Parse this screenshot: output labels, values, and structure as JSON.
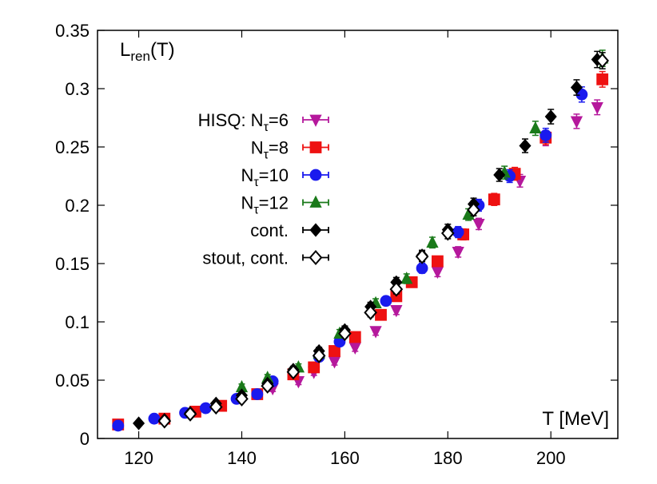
{
  "chart_data": {
    "type": "scatter",
    "title": "",
    "ylabel": "L",
    "ylabel_sub": "ren",
    "ylabel_suffix": "(T)",
    "xlabel": "T [MeV]",
    "xlim": [
      112,
      213
    ],
    "ylim": [
      0,
      0.35
    ],
    "x_ticks": [
      120,
      140,
      160,
      180,
      200
    ],
    "x_tick_labels": [
      "120",
      "140",
      "160",
      "180",
      "200"
    ],
    "y_ticks": [
      0,
      0.05,
      0.1,
      0.15,
      0.2,
      0.25,
      0.3,
      0.35
    ],
    "y_tick_labels": [
      "0",
      "0.05",
      "0.1",
      "0.15",
      "0.2",
      "0.25",
      "0.3",
      "0.35"
    ],
    "grid": false,
    "legend_position": "upper-left",
    "series": [
      {
        "name": "HISQ: N",
        "name_sub": "τ",
        "name_suffix": "=6",
        "marker": "triangle-down",
        "filled": true,
        "color": "#b5189c",
        "points": [
          {
            "x": 146,
            "y": 0.043
          },
          {
            "x": 151,
            "y": 0.049
          },
          {
            "x": 154,
            "y": 0.057
          },
          {
            "x": 158,
            "y": 0.066
          },
          {
            "x": 162,
            "y": 0.078
          },
          {
            "x": 166,
            "y": 0.092
          },
          {
            "x": 170,
            "y": 0.11
          },
          {
            "x": 178,
            "y": 0.143
          },
          {
            "x": 182,
            "y": 0.16
          },
          {
            "x": 186,
            "y": 0.184
          },
          {
            "x": 194,
            "y": 0.221
          },
          {
            "x": 199,
            "y": 0.257
          },
          {
            "x": 205,
            "y": 0.272
          },
          {
            "x": 209,
            "y": 0.284
          }
        ]
      },
      {
        "name": "N",
        "name_sub": "τ",
        "name_suffix": "=8",
        "marker": "square",
        "filled": true,
        "color": "#ee1111",
        "points": [
          {
            "x": 116,
            "y": 0.012
          },
          {
            "x": 125,
            "y": 0.017
          },
          {
            "x": 131,
            "y": 0.023
          },
          {
            "x": 136,
            "y": 0.028
          },
          {
            "x": 143,
            "y": 0.038
          },
          {
            "x": 150,
            "y": 0.055
          },
          {
            "x": 154,
            "y": 0.061
          },
          {
            "x": 158,
            "y": 0.075
          },
          {
            "x": 162,
            "y": 0.087
          },
          {
            "x": 167,
            "y": 0.106
          },
          {
            "x": 170,
            "y": 0.122
          },
          {
            "x": 173,
            "y": 0.134
          },
          {
            "x": 178,
            "y": 0.152
          },
          {
            "x": 183,
            "y": 0.175
          },
          {
            "x": 189,
            "y": 0.205
          },
          {
            "x": 193,
            "y": 0.227
          },
          {
            "x": 199,
            "y": 0.258
          },
          {
            "x": 210,
            "y": 0.308
          }
        ]
      },
      {
        "name": "N",
        "name_sub": "τ",
        "name_suffix": "=10",
        "marker": "circle",
        "filled": true,
        "color": "#1a1aee",
        "points": [
          {
            "x": 116,
            "y": 0.011
          },
          {
            "x": 123,
            "y": 0.017
          },
          {
            "x": 129,
            "y": 0.022
          },
          {
            "x": 133,
            "y": 0.026
          },
          {
            "x": 139,
            "y": 0.034
          },
          {
            "x": 143,
            "y": 0.038
          },
          {
            "x": 146,
            "y": 0.049
          },
          {
            "x": 155,
            "y": 0.07
          },
          {
            "x": 159,
            "y": 0.083
          },
          {
            "x": 168,
            "y": 0.118
          },
          {
            "x": 175,
            "y": 0.146
          },
          {
            "x": 182,
            "y": 0.177
          },
          {
            "x": 186,
            "y": 0.2
          },
          {
            "x": 192,
            "y": 0.225
          },
          {
            "x": 199,
            "y": 0.26
          },
          {
            "x": 206,
            "y": 0.295
          }
        ]
      },
      {
        "name": "N",
        "name_sub": "τ",
        "name_suffix": "=12",
        "marker": "triangle-up",
        "filled": true,
        "color": "#1a7a1a",
        "points": [
          {
            "x": 140,
            "y": 0.044
          },
          {
            "x": 145,
            "y": 0.052
          },
          {
            "x": 151,
            "y": 0.061
          },
          {
            "x": 155,
            "y": 0.073
          },
          {
            "x": 159,
            "y": 0.09
          },
          {
            "x": 166,
            "y": 0.116
          },
          {
            "x": 172,
            "y": 0.137
          },
          {
            "x": 177,
            "y": 0.168
          },
          {
            "x": 184,
            "y": 0.192
          },
          {
            "x": 191,
            "y": 0.228
          },
          {
            "x": 197,
            "y": 0.266
          },
          {
            "x": 210,
            "y": 0.326
          }
        ]
      },
      {
        "name": "cont.",
        "marker": "diamond",
        "filled": true,
        "color": "#000000",
        "points": [
          {
            "x": 120,
            "y": 0.013
          },
          {
            "x": 125,
            "y": 0.016
          },
          {
            "x": 130,
            "y": 0.022
          },
          {
            "x": 135,
            "y": 0.03
          },
          {
            "x": 140,
            "y": 0.037
          },
          {
            "x": 145,
            "y": 0.047
          },
          {
            "x": 150,
            "y": 0.059
          },
          {
            "x": 155,
            "y": 0.075
          },
          {
            "x": 160,
            "y": 0.093
          },
          {
            "x": 165,
            "y": 0.113
          },
          {
            "x": 170,
            "y": 0.134
          },
          {
            "x": 175,
            "y": 0.157
          },
          {
            "x": 180,
            "y": 0.179
          },
          {
            "x": 185,
            "y": 0.201
          },
          {
            "x": 190,
            "y": 0.226
          },
          {
            "x": 195,
            "y": 0.251
          },
          {
            "x": 200,
            "y": 0.276
          },
          {
            "x": 205,
            "y": 0.301
          },
          {
            "x": 209,
            "y": 0.325
          }
        ]
      },
      {
        "name": "stout, cont.",
        "marker": "diamond",
        "filled": false,
        "color": "#000000",
        "points": [
          {
            "x": 125,
            "y": 0.015
          },
          {
            "x": 130,
            "y": 0.021
          },
          {
            "x": 135,
            "y": 0.027
          },
          {
            "x": 140,
            "y": 0.034
          },
          {
            "x": 145,
            "y": 0.045
          },
          {
            "x": 150,
            "y": 0.057
          },
          {
            "x": 155,
            "y": 0.071
          },
          {
            "x": 160,
            "y": 0.09
          },
          {
            "x": 165,
            "y": 0.108
          },
          {
            "x": 170,
            "y": 0.128
          },
          {
            "x": 175,
            "y": 0.156
          },
          {
            "x": 180,
            "y": 0.176
          },
          {
            "x": 185,
            "y": 0.196
          },
          {
            "x": 210,
            "y": 0.324
          }
        ]
      }
    ]
  }
}
